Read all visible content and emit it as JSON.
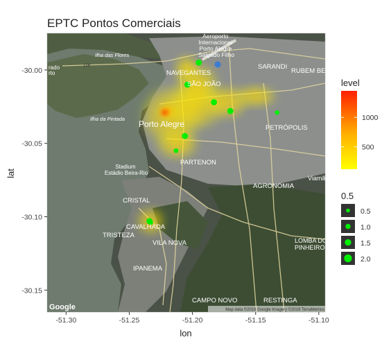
{
  "chart_data": {
    "type": "heatmap",
    "title": "EPTC Pontos Comerciais",
    "xlabel": "lon",
    "ylabel": "lat",
    "xlim": [
      -51.315,
      -51.095
    ],
    "ylim": [
      -30.165,
      -29.975
    ],
    "x_ticks": [
      -51.3,
      -51.25,
      -51.2,
      -51.15,
      -51.1
    ],
    "x_tick_labels": [
      "-51.30",
      "-51.25",
      "-51.20",
      "-51.15",
      "-51.10"
    ],
    "y_ticks": [
      -30.0,
      -30.05,
      -30.1,
      -30.15
    ],
    "y_tick_labels": [
      "-30.00",
      "-30.05",
      "-30.10",
      "-30.15"
    ],
    "grid": false,
    "basemap": "satellite",
    "basemap_credit": "Google",
    "basemap_attribution": "Map data ©2018 Google Imagery ©2018 TerraMetrics",
    "density_legend": {
      "title": "level",
      "ticks": [
        500,
        1000
      ],
      "range": [
        120,
        1450
      ],
      "colors": [
        "#ffff00",
        "#ffa500",
        "#ff0000"
      ]
    },
    "size_legend": {
      "title": "0.5",
      "labels": [
        "0.5",
        "1.0",
        "1.5",
        "2.0"
      ],
      "values": [
        0.5,
        1.0,
        1.5,
        2.0
      ],
      "color": "#00ee00"
    },
    "density_blobs": [
      {
        "x": -51.217,
        "y": -30.031,
        "rx": 0.026,
        "ry": 0.022,
        "level": 350
      },
      {
        "x": -51.197,
        "y": -30.024,
        "rx": 0.024,
        "ry": 0.018,
        "level": 280
      },
      {
        "x": -51.196,
        "y": -30.01,
        "rx": 0.018,
        "ry": 0.016,
        "level": 250
      },
      {
        "x": -51.173,
        "y": -30.022,
        "rx": 0.018,
        "ry": 0.012,
        "level": 220
      },
      {
        "x": -51.15,
        "y": -30.018,
        "rx": 0.018,
        "ry": 0.008,
        "level": 160
      },
      {
        "x": -51.205,
        "y": -29.999,
        "rx": 0.01,
        "ry": 0.01,
        "level": 200
      },
      {
        "x": -51.212,
        "y": -30.05,
        "rx": 0.018,
        "ry": 0.012,
        "level": 180
      },
      {
        "x": -51.233,
        "y": -30.103,
        "rx": 0.012,
        "ry": 0.01,
        "level": 160
      },
      {
        "x": -51.22,
        "y": -30.028,
        "rx": 0.008,
        "ry": 0.006,
        "level": 900
      },
      {
        "x": -51.222,
        "y": -30.029,
        "rx": 0.004,
        "ry": 0.003,
        "level": 1400
      }
    ],
    "points": [
      {
        "x": -51.195,
        "y": -29.995,
        "size": 1.0
      },
      {
        "x": -51.204,
        "y": -30.01,
        "size": 1.0
      },
      {
        "x": -51.183,
        "y": -30.022,
        "size": 1.0
      },
      {
        "x": -51.17,
        "y": -30.028,
        "size": 1.0
      },
      {
        "x": -51.133,
        "y": -30.029,
        "size": 0.5
      },
      {
        "x": -51.206,
        "y": -30.045,
        "size": 1.0
      },
      {
        "x": -51.213,
        "y": -30.055,
        "size": 0.5
      },
      {
        "x": -51.234,
        "y": -30.103,
        "size": 1.0
      },
      {
        "x": -51.233,
        "y": -30.104,
        "size": 0.5
      }
    ]
  },
  "map_labels": {
    "airport": "Aeroporto\nInternacional\nPorto Alegre\nSalgado Filho",
    "navegantes": "NAVEGANTES",
    "sao_joao": "SÃO JOÃO",
    "sarandi": "SARANDI",
    "rubem_berta": "RUBEM BER",
    "petropolis": "PETRÓPOLIS",
    "porto_alegre": "Porto Alegre",
    "ilha_pintada": "Ilha da Pintada",
    "ilha_flores": "Ilha das Flores",
    "stadium": "Stadium\nEstádio Beira-Rio",
    "partenon": "PARTENON",
    "agronomia": "AGRONOMIA",
    "cristal": "CRISTAL",
    "cavalhada": "CAVALHADA",
    "tristeza": "TRISTEZA",
    "vila_nova": "VILA NOVA",
    "ipanema": "IPANEMA",
    "lomba": "LOMBA DO\nPINHEIRO",
    "campo_novo": "CAMPO NOVO",
    "restinga": "RESTINGA",
    "viamao": "Viamã",
    "freguesia": "rado\nrto",
    "highway": "116"
  }
}
